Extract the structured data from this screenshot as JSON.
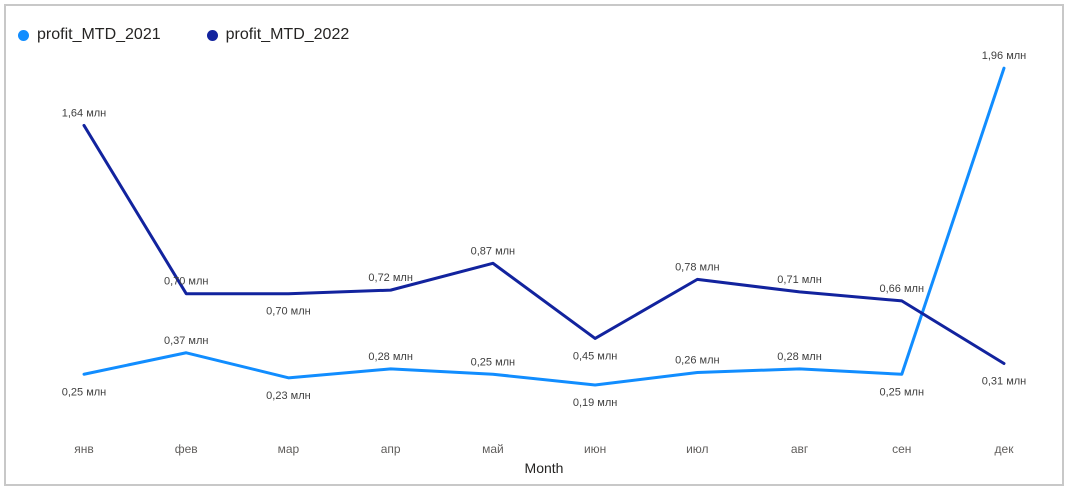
{
  "chart_data": {
    "type": "line",
    "title": "",
    "xlabel": "Month",
    "ylabel": "",
    "legend_position": "top-left",
    "grid": false,
    "ylim": [
      0,
      2.0
    ],
    "categories": [
      "янв",
      "фев",
      "мар",
      "апр",
      "май",
      "июн",
      "июл",
      "авг",
      "сен",
      "дек"
    ],
    "series": [
      {
        "name": "profit_MTD_2021",
        "color": "#118DFF",
        "values": [
          0.25,
          0.37,
          0.23,
          0.28,
          0.25,
          0.19,
          0.26,
          0.28,
          0.25,
          1.96
        ],
        "labels": [
          "0,25 млн",
          "0,37 млн",
          "0,23 млн",
          "0,28 млн",
          "0,25 млн",
          "0,19 млн",
          "0,26 млн",
          "0,28 млн",
          "0,25 млн",
          "1,96 млн"
        ]
      },
      {
        "name": "profit_MTD_2022",
        "color": "#12239E",
        "values": [
          1.64,
          0.7,
          0.7,
          0.72,
          0.87,
          0.45,
          0.78,
          0.71,
          0.66,
          0.31
        ],
        "labels": [
          "1,64 млн",
          "0,70 млн",
          "0,70 млн",
          "0,72 млн",
          "0,87 млн",
          "0,45 млн",
          "0,78 млн",
          "0,71 млн",
          "0,66 млн",
          "0,31 млн"
        ]
      }
    ]
  }
}
